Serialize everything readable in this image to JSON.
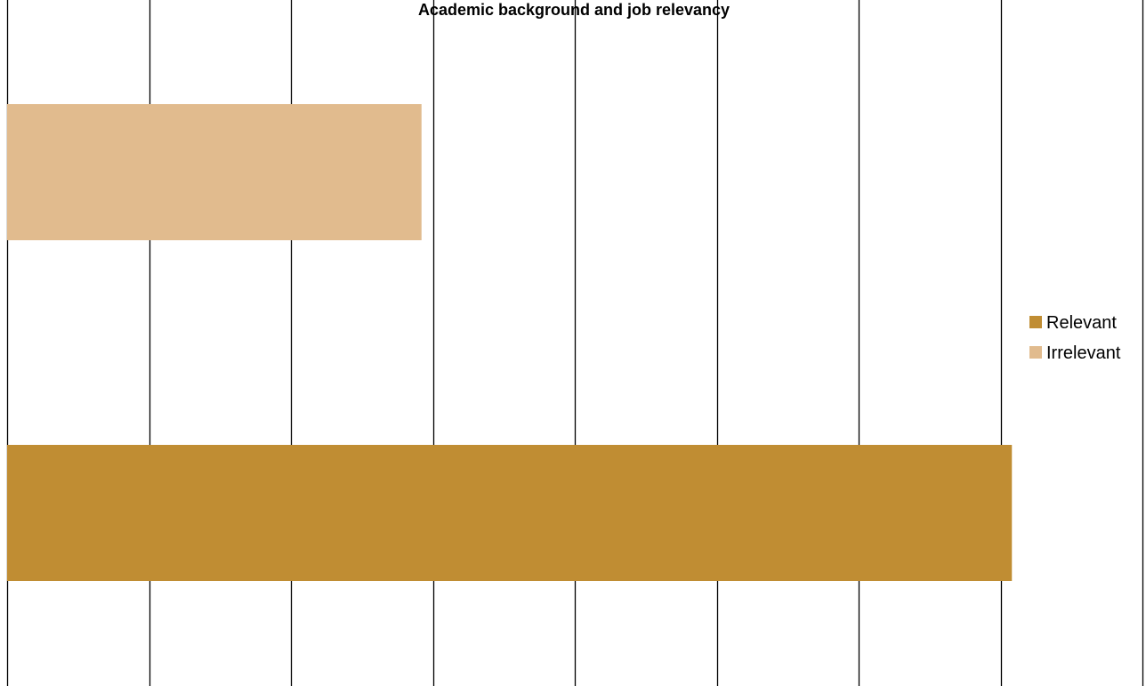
{
  "chart_data": {
    "type": "bar",
    "orientation": "horizontal",
    "title": "Academic background and job relevancy",
    "categories": [
      "Irrelevant",
      "Relevant"
    ],
    "values": [
      29.2,
      70.8
    ],
    "xlim": [
      0,
      80
    ],
    "grid": true,
    "legend_position": "right",
    "series": [
      {
        "name": "Relevant",
        "value": 70.8,
        "color": "#c08d33"
      },
      {
        "name": "Irrelevant",
        "value": 29.2,
        "color": "#e1bb8e"
      }
    ]
  }
}
